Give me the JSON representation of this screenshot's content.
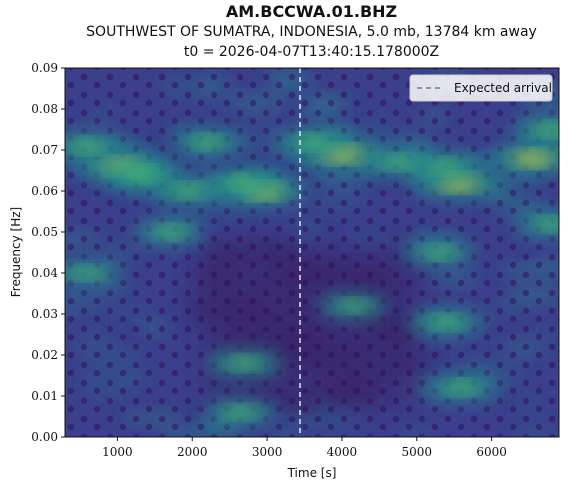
{
  "header": {
    "station": "AM.BCCWA.01.BHZ",
    "event": "SOUTHWEST OF SUMATRA, INDONESIA, 5.0 mb, 13784 km away",
    "origin_time": "t0 = 2026-04-07T13:40:15.178000Z"
  },
  "chart_data": {
    "type": "heatmap",
    "title": "AM.BCCWA.01.BHZ",
    "xlabel": "Time [s]",
    "ylabel": "Frequency [Hz]",
    "xlim": [
      300,
      6900
    ],
    "ylim": [
      0.0,
      0.09
    ],
    "x_ticks": [
      1000,
      2000,
      3000,
      4000,
      5000,
      6000
    ],
    "y_ticks": [
      0.0,
      0.01,
      0.02,
      0.03,
      0.04,
      0.05,
      0.06,
      0.07,
      0.08,
      0.09
    ],
    "x_tick_labels": [
      "1000",
      "2000",
      "3000",
      "4000",
      "5000",
      "6000"
    ],
    "y_tick_labels": [
      "0.00",
      "0.01",
      "0.02",
      "0.03",
      "0.04",
      "0.05",
      "0.06",
      "0.07",
      "0.08",
      "0.09"
    ],
    "colormap": "viridis",
    "expected_arrival_s": 3440,
    "legend": {
      "label": "Expected arrival",
      "placement": "top-right"
    },
    "grid": false,
    "hotspots": [
      {
        "t": 4000,
        "f": 0.069,
        "level": 1.0
      },
      {
        "t": 5550,
        "f": 0.062,
        "level": 1.0
      },
      {
        "t": 1050,
        "f": 0.066,
        "level": 0.85
      },
      {
        "t": 6550,
        "f": 0.068,
        "level": 0.85
      },
      {
        "t": 2950,
        "f": 0.06,
        "level": 0.8
      },
      {
        "t": 1350,
        "f": 0.064,
        "level": 0.75
      },
      {
        "t": 2650,
        "f": 0.062,
        "level": 0.6
      },
      {
        "t": 5350,
        "f": 0.066,
        "level": 0.6
      },
      {
        "t": 4750,
        "f": 0.067,
        "level": 0.5
      },
      {
        "t": 1950,
        "f": 0.06,
        "level": 0.55
      },
      {
        "t": 600,
        "f": 0.071,
        "level": 0.6
      },
      {
        "t": 3600,
        "f": 0.072,
        "level": 0.55
      },
      {
        "t": 6800,
        "f": 0.075,
        "level": 0.6
      },
      {
        "t": 2200,
        "f": 0.072,
        "level": 0.45
      },
      {
        "t": 5400,
        "f": 0.028,
        "level": 0.5
      },
      {
        "t": 5600,
        "f": 0.012,
        "level": 0.5
      },
      {
        "t": 2700,
        "f": 0.018,
        "level": 0.5
      },
      {
        "t": 2650,
        "f": 0.006,
        "level": 0.4
      },
      {
        "t": 600,
        "f": 0.04,
        "level": 0.35
      },
      {
        "t": 4150,
        "f": 0.032,
        "level": 0.3
      },
      {
        "t": 5300,
        "f": 0.045,
        "level": 0.4
      },
      {
        "t": 1700,
        "f": 0.05,
        "level": 0.4
      },
      {
        "t": 6800,
        "f": 0.052,
        "level": 0.45
      }
    ]
  }
}
